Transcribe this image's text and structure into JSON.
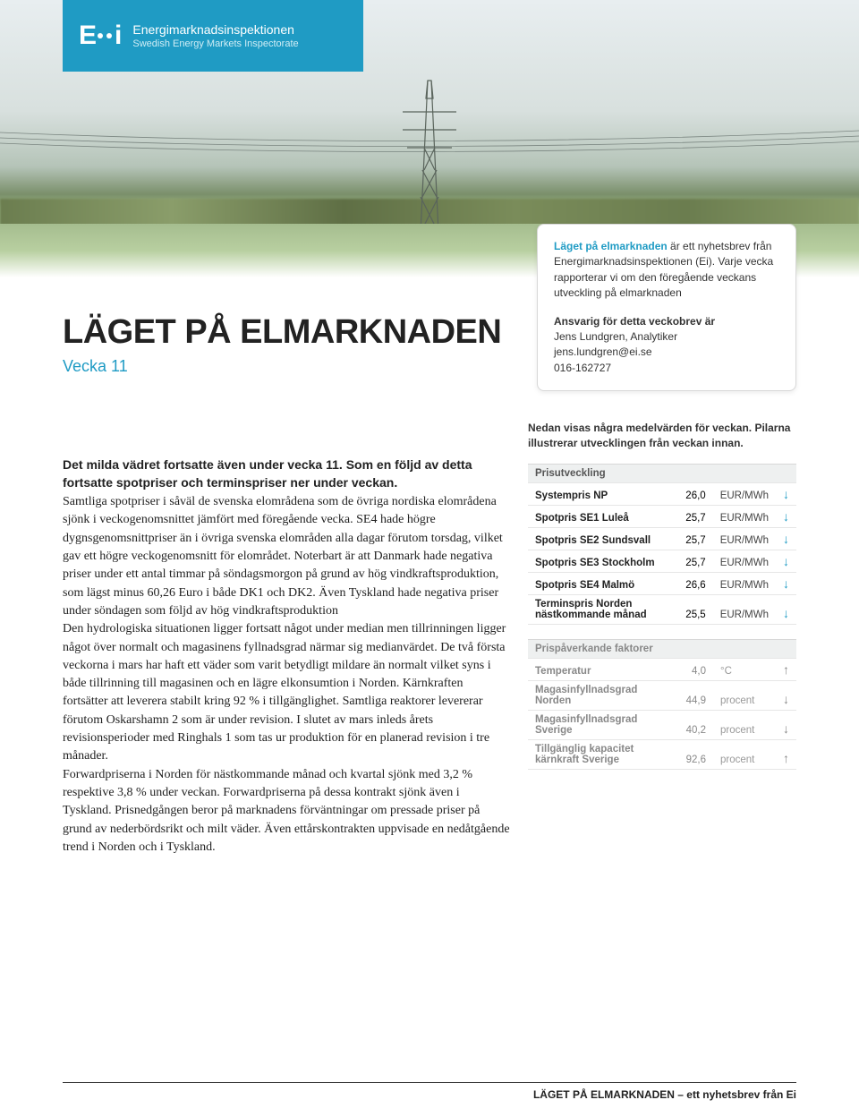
{
  "logo": {
    "mark_left": "E",
    "mark_right": "i",
    "line1": "Energimarknadsinspektionen",
    "line2": "Swedish Energy Markets Inspectorate"
  },
  "title": "LÄGET PÅ ELMARKNADEN",
  "subtitle": "Vecka 11",
  "info_box": {
    "highlight": "Läget på elmarknaden",
    "desc": " är ett nyhetsbrev från Energimarknadsinspektionen (Ei). Varje vecka rapporterar vi om den föregående veckans utveckling på elmarknaden",
    "resp_label": "Ansvarig för detta veckobrev är",
    "name": "Jens Lundgren, Analytiker",
    "email": "jens.lundgren@ei.se",
    "phone": "016-162727"
  },
  "intro_bold": "Det milda vädret fortsatte även under vecka 11. Som en följd av detta fortsatte spotpriser och terminspriser ner under veckan.",
  "body": "Samtliga spotpriser i såväl de svenska elområdena som de övriga nordiska elområdena sjönk i veckogenomsnittet jämfört med föregående vecka. SE4 hade högre dygnsgenomsnittpriser än i övriga svenska elområden alla dagar förutom torsdag, vilket gav ett högre veckogenomsnitt för elområdet. Noterbart är att Danmark hade negativa priser under ett antal timmar på söndagsmorgon på grund av hög vindkraftsproduktion, som lägst minus 60,26 Euro i både DK1 och DK2. Även Tyskland hade negativa priser under söndagen som följd av hög vindkraftsproduktion\nDen hydrologiska situationen ligger fortsatt något under median men tillrinningen ligger något över normalt och magasinens fyllnadsgrad närmar sig medianvärdet. De två första veckorna i mars har haft ett väder som varit betydligt mildare än normalt vilket syns i både tillrinning till magasinen och en lägre elkonsumtion i Norden. Kärnkraften fortsätter att leverera stabilt kring 92 % i tillgänglighet. Samtliga reaktorer levererar förutom Oskarshamn 2 som är under revision. I slutet av mars inleds årets revisionsperioder med Ringhals 1 som tas ur produktion för en planerad revision i tre månader.\nForwardpriserna i Norden för nästkommande månad och kvartal sjönk med 3,2 % respektive 3,8 % under veckan. Forwardpriserna på dessa kontrakt sjönk även i Tyskland. Prisnedgången beror på marknadens förväntningar om pressade priser på grund av nederbördsrikt och milt väder. Även ettårskontrakten uppvisade en nedåtgående trend i Norden och i Tyskland.",
  "side_intro": "Nedan visas några medelvärden för veckan. Pilarna illustrerar utvecklingen från veckan innan.",
  "prices": {
    "header": "Prisutveckling",
    "rows": [
      {
        "label": "Systempris NP",
        "value": "26,0",
        "unit": "EUR/MWh",
        "dir": "down"
      },
      {
        "label": "Spotpris SE1 Luleå",
        "value": "25,7",
        "unit": "EUR/MWh",
        "dir": "down"
      },
      {
        "label": "Spotpris SE2 Sundsvall",
        "value": "25,7",
        "unit": "EUR/MWh",
        "dir": "down"
      },
      {
        "label": "Spotpris SE3 Stockholm",
        "value": "25,7",
        "unit": "EUR/MWh",
        "dir": "down"
      },
      {
        "label": "Spotpris SE4 Malmö",
        "value": "26,6",
        "unit": "EUR/MWh",
        "dir": "down"
      },
      {
        "label": "Terminspris Norden nästkommande månad",
        "value": "25,5",
        "unit": "EUR/MWh",
        "dir": "down"
      }
    ]
  },
  "factors": {
    "header": "Prispåverkande faktorer",
    "rows": [
      {
        "label": "Temperatur",
        "value": "4,0",
        "unit": "°C",
        "dir": "up",
        "faded": true
      },
      {
        "label": "Magasinfyllnadsgrad Norden",
        "value": "44,9",
        "unit": "procent",
        "dir": "down",
        "faded": true
      },
      {
        "label": "Magasinfyllnadsgrad Sverige",
        "value": "40,2",
        "unit": "procent",
        "dir": "down",
        "faded": true
      },
      {
        "label": "Tillgänglig kapacitet kärnkraft Sverige",
        "value": "92,6",
        "unit": "procent",
        "dir": "up",
        "faded": true
      }
    ]
  },
  "footer": "LÄGET PÅ ELMARKNADEN – ett nyhetsbrev från Ei",
  "colors": {
    "brand": "#1f9bc4",
    "arrow_down": "#1f9bc4",
    "arrow_up": "#bbbbbb",
    "text": "#222222",
    "table_head_bg": "#eef0f0",
    "border": "#d8d8d8"
  }
}
